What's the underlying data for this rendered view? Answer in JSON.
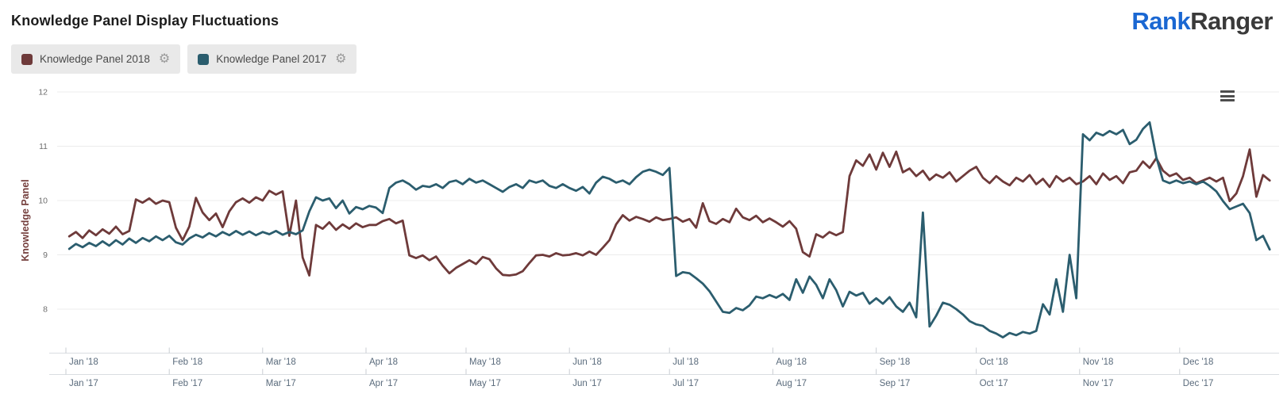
{
  "header": {
    "title": "Knowledge Panel Display Fluctuations",
    "logo": {
      "text_primary": "Rank",
      "text_secondary": "Ranger",
      "color_primary": "#1a67d2",
      "color_secondary": "#3a3a3a"
    }
  },
  "legend": {
    "buttons": [
      {
        "label": "Knowledge Panel 2018",
        "gear_icon": "⚙"
      },
      {
        "label": "Knowledge Panel 2017",
        "gear_icon": "⚙"
      }
    ]
  },
  "chart_data": {
    "type": "line",
    "title": "Knowledge Panel Display Fluctuations",
    "xlabel": "",
    "ylabel": "Knowledge Panel",
    "ylim": [
      7.2,
      12.2
    ],
    "y_ticks": [
      12,
      11,
      10,
      9,
      8
    ],
    "grid": true,
    "legend_position": "top-left",
    "x_unit": "day-of-year",
    "x_range_days": 365,
    "first_day": 1,
    "days_per_point": 2,
    "month_start_days": [
      0,
      31,
      59,
      90,
      120,
      151,
      181,
      212,
      243,
      273,
      304,
      334
    ],
    "x_axis_rows": [
      {
        "labels": [
          "Jan '18",
          "Feb '18",
          "Mar '18",
          "Apr '18",
          "May '18",
          "Jun '18",
          "Jul '18",
          "Aug '18",
          "Sep '18",
          "Oct '18",
          "Nov '18",
          "Dec '18"
        ]
      },
      {
        "labels": [
          "Jan '17",
          "Feb '17",
          "Mar '17",
          "Apr '17",
          "May '17",
          "Jun '17",
          "Jul '17",
          "Aug '17",
          "Sep '17",
          "Oct '17",
          "Nov '17",
          "Dec '17"
        ]
      }
    ],
    "axis_colors": {
      "tick_label": "#5a6b7c",
      "y_tick_label": "#6e6e6e",
      "grid_line": "#ececec",
      "axis_line": "#d9dde1",
      "ylabel_color": "#743e3c"
    },
    "series": [
      {
        "name": "Knowledge Panel 2018",
        "color": "#6e3a3a",
        "values": [
          9.34,
          9.42,
          9.31,
          9.45,
          9.36,
          9.47,
          9.39,
          9.52,
          9.38,
          9.44,
          10.02,
          9.96,
          10.04,
          9.94,
          10.0,
          9.97,
          9.5,
          9.27,
          9.52,
          10.05,
          9.78,
          9.64,
          9.76,
          9.51,
          9.8,
          9.97,
          10.04,
          9.96,
          10.06,
          10.0,
          10.18,
          10.11,
          10.17,
          9.35,
          10.0,
          8.95,
          8.62,
          9.55,
          9.48,
          9.6,
          9.46,
          9.56,
          9.48,
          9.58,
          9.51,
          9.55,
          9.55,
          9.62,
          9.66,
          9.58,
          9.63,
          8.99,
          8.94,
          8.99,
          8.9,
          8.97,
          8.8,
          8.66,
          8.76,
          8.83,
          8.9,
          8.83,
          8.96,
          8.92,
          8.75,
          8.63,
          8.62,
          8.64,
          8.7,
          8.85,
          8.99,
          9.0,
          8.97,
          9.03,
          8.99,
          9.0,
          9.03,
          8.99,
          9.06,
          9.0,
          9.13,
          9.27,
          9.56,
          9.73,
          9.63,
          9.7,
          9.66,
          9.61,
          9.69,
          9.64,
          9.66,
          9.69,
          9.61,
          9.66,
          9.5,
          9.95,
          9.62,
          9.57,
          9.66,
          9.6,
          9.85,
          9.69,
          9.64,
          9.72,
          9.6,
          9.67,
          9.6,
          9.52,
          9.62,
          9.48,
          9.05,
          8.97,
          9.38,
          9.32,
          9.42,
          9.36,
          9.42,
          10.45,
          10.74,
          10.64,
          10.85,
          10.57,
          10.88,
          10.62,
          10.9,
          10.52,
          10.59,
          10.45,
          10.55,
          10.38,
          10.48,
          10.42,
          10.52,
          10.35,
          10.45,
          10.55,
          10.62,
          10.42,
          10.32,
          10.45,
          10.35,
          10.28,
          10.42,
          10.35,
          10.47,
          10.3,
          10.4,
          10.25,
          10.45,
          10.35,
          10.42,
          10.3,
          10.35,
          10.45,
          10.3,
          10.5,
          10.38,
          10.45,
          10.32,
          10.52,
          10.55,
          10.72,
          10.6,
          10.78,
          10.55,
          10.45,
          10.5,
          10.38,
          10.42,
          10.32,
          10.37,
          10.42,
          10.35,
          10.42,
          9.99,
          10.13,
          10.45,
          10.94,
          10.07,
          10.47,
          10.37
        ]
      },
      {
        "name": "Knowledge Panel 2017",
        "color": "#2b5d6e",
        "values": [
          9.11,
          9.2,
          9.14,
          9.22,
          9.16,
          9.25,
          9.17,
          9.27,
          9.19,
          9.3,
          9.22,
          9.31,
          9.25,
          9.34,
          9.27,
          9.35,
          9.23,
          9.19,
          9.3,
          9.37,
          9.32,
          9.4,
          9.34,
          9.42,
          9.36,
          9.44,
          9.37,
          9.43,
          9.36,
          9.42,
          9.38,
          9.44,
          9.37,
          9.42,
          9.38,
          9.45,
          9.8,
          10.06,
          10.0,
          10.04,
          9.86,
          10.0,
          9.76,
          9.88,
          9.84,
          9.9,
          9.87,
          9.77,
          10.23,
          10.33,
          10.37,
          10.3,
          10.2,
          10.27,
          10.25,
          10.3,
          10.23,
          10.34,
          10.37,
          10.3,
          10.4,
          10.33,
          10.37,
          10.3,
          10.23,
          10.16,
          10.25,
          10.3,
          10.23,
          10.37,
          10.33,
          10.37,
          10.27,
          10.23,
          10.3,
          10.23,
          10.18,
          10.25,
          10.13,
          10.33,
          10.44,
          10.4,
          10.33,
          10.37,
          10.3,
          10.43,
          10.53,
          10.57,
          10.53,
          10.47,
          10.6,
          8.61,
          8.68,
          8.66,
          8.57,
          8.47,
          8.33,
          8.14,
          7.95,
          7.93,
          8.02,
          7.98,
          8.07,
          8.23,
          8.2,
          8.26,
          8.21,
          8.28,
          8.17,
          8.55,
          8.3,
          8.6,
          8.45,
          8.2,
          8.55,
          8.35,
          8.05,
          8.32,
          8.25,
          8.3,
          8.1,
          8.2,
          8.1,
          8.22,
          8.05,
          7.95,
          8.12,
          7.85,
          9.78,
          7.68,
          7.88,
          8.12,
          8.08,
          8.0,
          7.9,
          7.78,
          7.72,
          7.69,
          7.6,
          7.55,
          7.48,
          7.56,
          7.52,
          7.58,
          7.55,
          7.6,
          8.09,
          7.9,
          8.55,
          7.95,
          9.0,
          8.2,
          11.22,
          11.11,
          11.25,
          11.2,
          11.28,
          11.22,
          11.3,
          11.04,
          11.12,
          11.32,
          11.44,
          10.8,
          10.37,
          10.32,
          10.37,
          10.32,
          10.35,
          10.3,
          10.35,
          10.27,
          10.17,
          9.99,
          9.84,
          9.89,
          9.94,
          9.77,
          9.27,
          9.35,
          9.1
        ]
      }
    ]
  },
  "chart_menu": {
    "icon_name": "hamburger-menu"
  }
}
